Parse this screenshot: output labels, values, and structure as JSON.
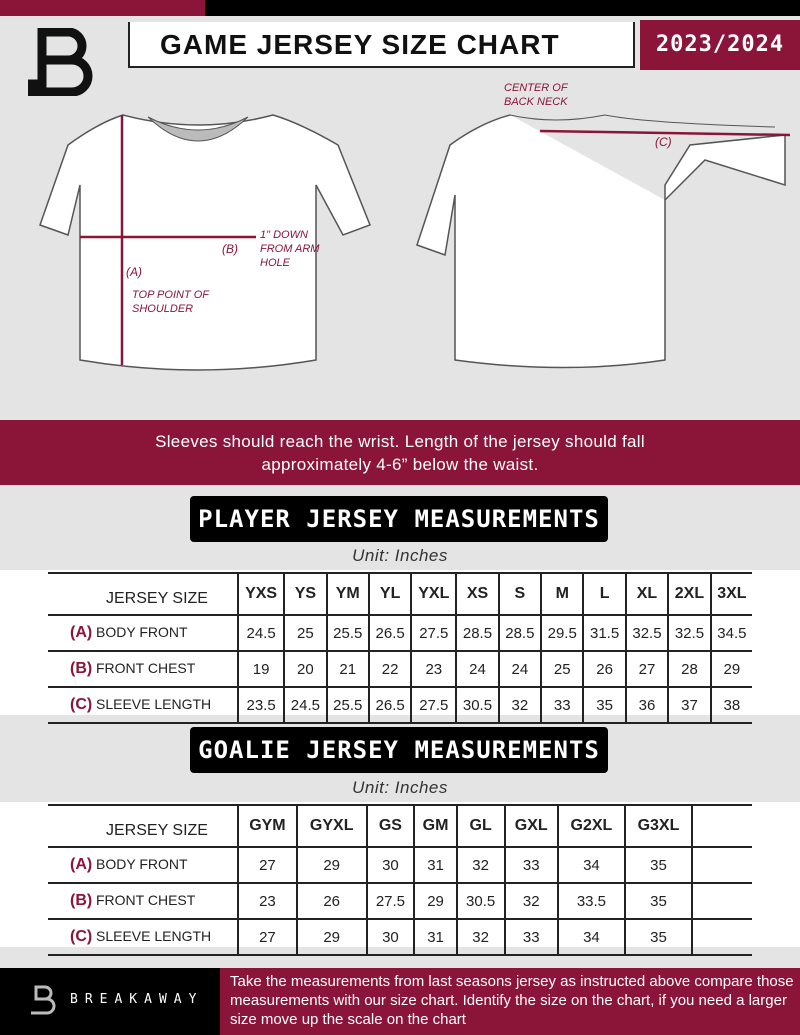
{
  "header": {
    "title": "GAME JERSEY SIZE CHART",
    "season": "2023/2024"
  },
  "diagram": {
    "front_notes": {
      "a": "(A)",
      "a_note": "TOP POINT OF SHOULDER",
      "b": "(B)",
      "b_note": "1\" DOWN FROM ARM HOLE"
    },
    "back_notes": {
      "c": "(C)",
      "c_note": "CENTER OF BACK NECK"
    }
  },
  "banner": {
    "line1": "Sleeves should reach the wrist. Length of the jersey should fall",
    "line2": "approximately 4-6” below the waist."
  },
  "player": {
    "title": "PLAYER JERSEY MEASUREMENTS",
    "unit": "Unit: Inches",
    "header_label": "JERSEY SIZE",
    "sizes": [
      "YXS",
      "YS",
      "YM",
      "YL",
      "YXL",
      "XS",
      "S",
      "M",
      "L",
      "XL",
      "2XL",
      "3XL"
    ],
    "rows": [
      {
        "code": "(A)",
        "label": "BODY FRONT",
        "values": [
          "24.5",
          "25",
          "25.5",
          "26.5",
          "27.5",
          "28.5",
          "28.5",
          "29.5",
          "31.5",
          "32.5",
          "32.5",
          "34.5"
        ]
      },
      {
        "code": "(B)",
        "label": "FRONT CHEST",
        "values": [
          "19",
          "20",
          "21",
          "22",
          "23",
          "24",
          "24",
          "25",
          "26",
          "27",
          "28",
          "29"
        ]
      },
      {
        "code": "(C)",
        "label": "SLEEVE LENGTH",
        "values": [
          "23.5",
          "24.5",
          "25.5",
          "26.5",
          "27.5",
          "30.5",
          "32",
          "33",
          "35",
          "36",
          "37",
          "38"
        ]
      }
    ]
  },
  "goalie": {
    "title": "GOALIE JERSEY MEASUREMENTS",
    "unit": "Unit: Inches",
    "header_label": "JERSEY SIZE",
    "sizes": [
      "GYM",
      "GYXL",
      "GS",
      "GM",
      "GL",
      "GXL",
      "G2XL",
      "G3XL"
    ],
    "rows": [
      {
        "code": "(A)",
        "label": "BODY FRONT",
        "values": [
          "27",
          "29",
          "30",
          "31",
          "32",
          "33",
          "34",
          "35"
        ]
      },
      {
        "code": "(B)",
        "label": "FRONT CHEST",
        "values": [
          "23",
          "26",
          "27.5",
          "29",
          "30.5",
          "32",
          "33.5",
          "35"
        ]
      },
      {
        "code": "(C)",
        "label": "SLEEVE LENGTH",
        "values": [
          "27",
          "29",
          "30",
          "31",
          "32",
          "33",
          "34",
          "35"
        ]
      }
    ]
  },
  "footer": {
    "brand": "BREAKAWAY",
    "instructions": "Take the measurements from last seasons jersey as instructed above compare those measurements  with our size chart. Identify the size on the chart, if you need a larger size move up the scale on the chart"
  },
  "colors": {
    "accent": "#8a1538",
    "dark": "#000000",
    "background": "#e4e4e4"
  }
}
